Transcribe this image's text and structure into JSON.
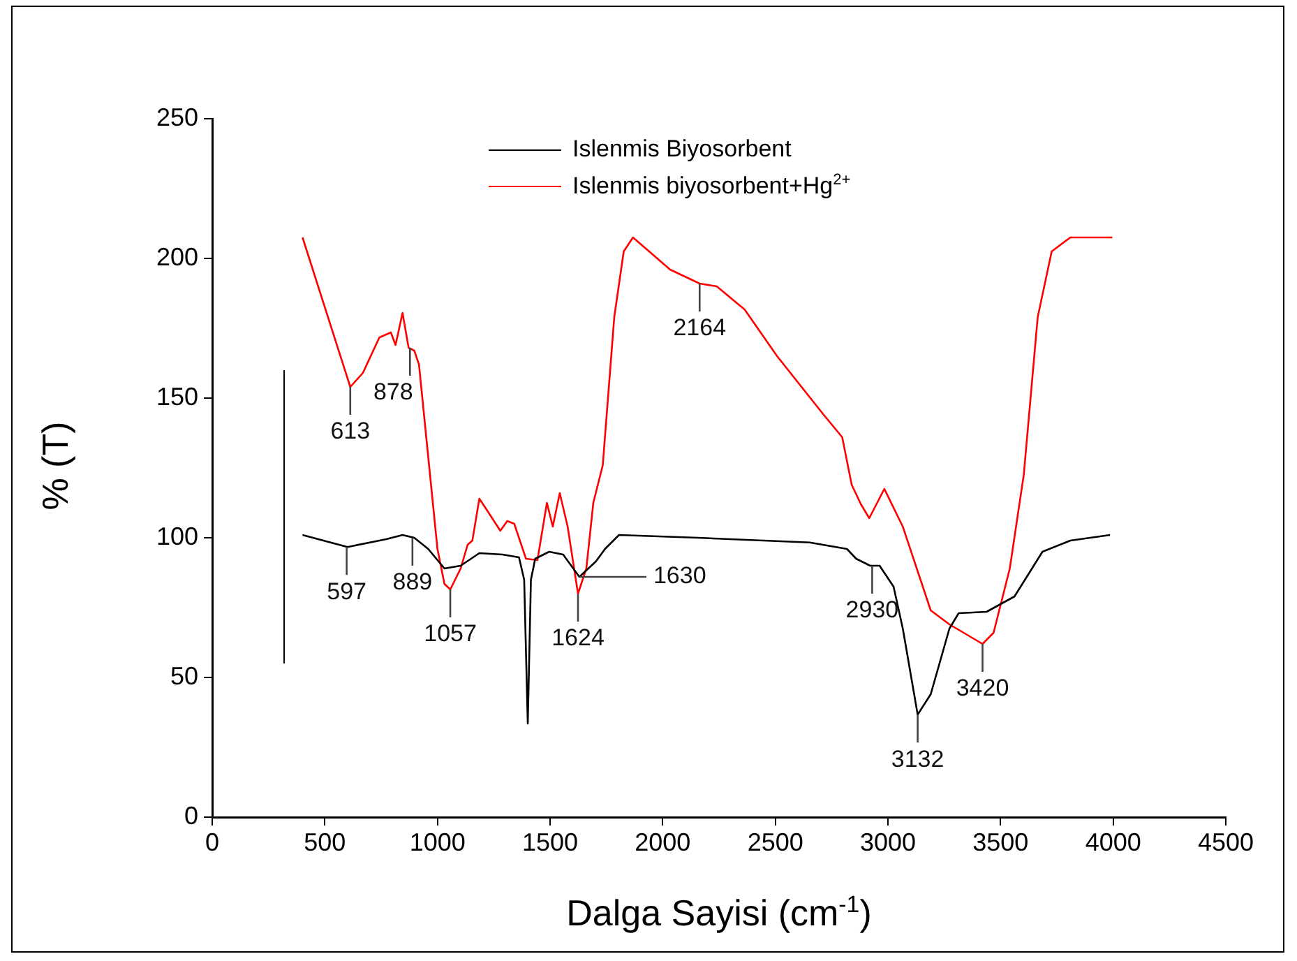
{
  "chart_data": {
    "type": "line",
    "xlabel": "Dalga Sayisi (cm$^{-1}$)",
    "ylabel": "% (T)",
    "xlim": [
      0,
      4500
    ],
    "xticks": [
      0,
      500,
      1000,
      1500,
      2000,
      2500,
      3000,
      3500,
      4000,
      4500
    ],
    "ylim": [
      0,
      250
    ],
    "yticks": [
      0,
      50,
      100,
      150,
      200,
      250
    ],
    "grid": false,
    "legend": "top",
    "marker": "none",
    "line_style": "solid",
    "series": [
      {
        "name": "Islenmis Biyosorbent",
        "color": "#000000",
        "x": [
          401,
          601,
          773,
          845,
          897,
          959,
          1031,
          1103,
          1186,
          1289,
          1362,
          1385,
          1401,
          1415,
          1434,
          1496,
          1558,
          1630,
          1703,
          1744,
          1806,
          2157,
          2653,
          2818,
          2859,
          2921,
          2963,
          3025,
          3066,
          3132,
          3190,
          3273,
          3314,
          3438,
          3562,
          3686,
          3810,
          3986
        ],
        "values": [
          101,
          96.7,
          99.5,
          101,
          100,
          96,
          89,
          90,
          94.5,
          94,
          93,
          85,
          33.5,
          85,
          92.5,
          95,
          94,
          86,
          91.5,
          96,
          101,
          100,
          98.3,
          96,
          92.5,
          90,
          90,
          82.5,
          67.5,
          36.7,
          44,
          67.5,
          73,
          73.5,
          79,
          95,
          99,
          101
        ]
      },
      {
        "name": "Islenmis biyosorbent+Hg$^{2+}$",
        "color": "#ff0000",
        "x": [
          401,
          613,
          669,
          742,
          793,
          814,
          845,
          872,
          897,
          918,
          959,
          1000,
          1031,
          1057,
          1103,
          1134,
          1155,
          1186,
          1227,
          1279,
          1310,
          1341,
          1393,
          1444,
          1486,
          1512,
          1543,
          1578,
          1624,
          1661,
          1692,
          1734,
          1785,
          1827,
          1868,
          2033,
          2164,
          2240,
          2364,
          2508,
          2715,
          2797,
          2839,
          2880,
          2917,
          2984,
          3066,
          3190,
          3273,
          3420,
          3469,
          3541,
          3603,
          3665,
          3727,
          3810,
          3996
        ],
        "values": [
          207.5,
          154,
          159,
          171.7,
          173.5,
          169,
          180.5,
          168,
          167,
          162,
          129,
          96,
          83.5,
          81.5,
          89,
          97.5,
          99,
          114,
          109,
          102.5,
          106,
          105,
          92.5,
          92,
          112.5,
          104,
          116,
          104,
          80,
          89,
          112.5,
          126,
          179,
          202.5,
          207.5,
          196,
          191,
          190,
          181.7,
          165,
          144,
          136,
          119,
          112,
          107,
          117.5,
          104,
          74,
          69,
          62,
          66,
          89,
          122.5,
          179,
          202.5,
          207.5,
          207.5
        ]
      }
    ],
    "annotations": [
      {
        "text": "613",
        "x": 613,
        "y": 154
      },
      {
        "text": "878",
        "x": 878,
        "y": 168
      },
      {
        "text": "597",
        "x": 597,
        "y": 96.7
      },
      {
        "text": "889",
        "x": 889,
        "y": 100
      },
      {
        "text": "1057",
        "x": 1057,
        "y": 81.5
      },
      {
        "text": "1624",
        "x": 1624,
        "y": 80
      },
      {
        "text": "1630",
        "x": 1630,
        "y": 86
      },
      {
        "text": "2164",
        "x": 2164,
        "y": 191
      },
      {
        "text": "2930",
        "x": 2930,
        "y": 90
      },
      {
        "text": "3132",
        "x": 3132,
        "y": 36.7
      },
      {
        "text": "3420",
        "x": 3420,
        "y": 62
      }
    ]
  }
}
